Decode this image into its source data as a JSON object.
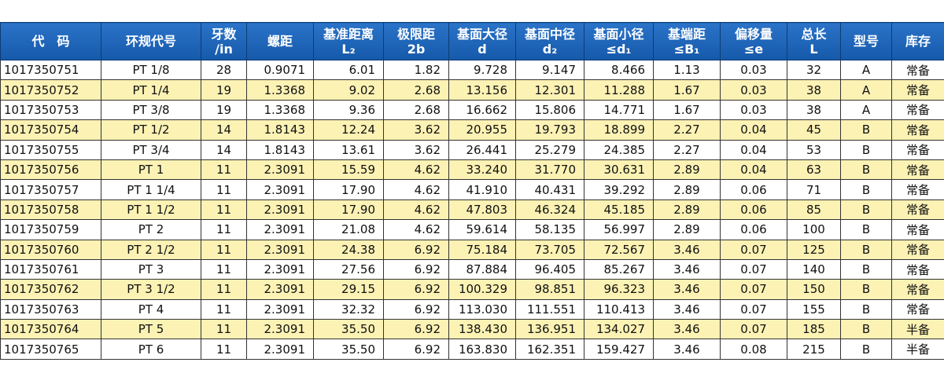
{
  "table": {
    "header": [
      [
        "代　码"
      ],
      [
        "环规代号"
      ],
      [
        "牙数",
        "/in"
      ],
      [
        "螺距"
      ],
      [
        "基准距离",
        "L₂"
      ],
      [
        "极限距",
        "2b"
      ],
      [
        "基面大径",
        "d"
      ],
      [
        "基面中径",
        "d₂"
      ],
      [
        "基面小径",
        "≤d₁"
      ],
      [
        "基端距",
        "≤B₁"
      ],
      [
        "偏移量",
        "≤e"
      ],
      [
        "总长",
        "L"
      ],
      [
        "型号"
      ],
      [
        "库存"
      ]
    ],
    "rows": [
      [
        "1017350751",
        "PT 1/8",
        "28",
        "0.9071",
        "6.01",
        "1.82",
        "9.728",
        "9.147",
        "8.466",
        "1.13",
        "0.03",
        "32",
        "A",
        "常备"
      ],
      [
        "1017350752",
        "PT 1/4",
        "19",
        "1.3368",
        "9.02",
        "2.68",
        "13.156",
        "12.301",
        "11.288",
        "1.67",
        "0.03",
        "38",
        "A",
        "常备"
      ],
      [
        "1017350753",
        "PT 3/8",
        "19",
        "1.3368",
        "9.36",
        "2.68",
        "16.662",
        "15.806",
        "14.771",
        "1.67",
        "0.03",
        "38",
        "A",
        "常备"
      ],
      [
        "1017350754",
        "PT 1/2",
        "14",
        "1.8143",
        "12.24",
        "3.62",
        "20.955",
        "19.793",
        "18.899",
        "2.27",
        "0.04",
        "45",
        "B",
        "常备"
      ],
      [
        "1017350755",
        "PT 3/4",
        "14",
        "1.8143",
        "13.61",
        "3.62",
        "26.441",
        "25.279",
        "24.385",
        "2.27",
        "0.04",
        "53",
        "B",
        "常备"
      ],
      [
        "1017350756",
        "PT 1",
        "11",
        "2.3091",
        "15.59",
        "4.62",
        "33.240",
        "31.770",
        "30.631",
        "2.89",
        "0.04",
        "63",
        "B",
        "常备"
      ],
      [
        "1017350757",
        "PT 1 1/4",
        "11",
        "2.3091",
        "17.90",
        "4.62",
        "41.910",
        "40.431",
        "39.292",
        "2.89",
        "0.06",
        "71",
        "B",
        "常备"
      ],
      [
        "1017350758",
        "PT 1 1/2",
        "11",
        "2.3091",
        "17.90",
        "4.62",
        "47.803",
        "46.324",
        "45.185",
        "2.89",
        "0.06",
        "85",
        "B",
        "常备"
      ],
      [
        "1017350759",
        "PT 2",
        "11",
        "2.3091",
        "21.08",
        "4.62",
        "59.614",
        "58.135",
        "56.997",
        "2.89",
        "0.06",
        "100",
        "B",
        "常备"
      ],
      [
        "1017350760",
        "PT 2 1/2",
        "11",
        "2.3091",
        "24.38",
        "6.92",
        "75.184",
        "73.705",
        "72.567",
        "3.46",
        "0.07",
        "125",
        "B",
        "常备"
      ],
      [
        "1017350761",
        "PT 3",
        "11",
        "2.3091",
        "27.56",
        "6.92",
        "87.884",
        "96.405",
        "85.267",
        "3.46",
        "0.07",
        "140",
        "B",
        "常备"
      ],
      [
        "1017350762",
        "PT 3 1/2",
        "11",
        "2.3091",
        "29.15",
        "6.92",
        "100.329",
        "98.851",
        "96.323",
        "3.46",
        "0.07",
        "150",
        "B",
        "常备"
      ],
      [
        "1017350763",
        "PT 4",
        "11",
        "2.3091",
        "32.32",
        "6.92",
        "113.030",
        "111.551",
        "110.413",
        "3.46",
        "0.07",
        "155",
        "B",
        "常备"
      ],
      [
        "1017350764",
        "PT 5",
        "11",
        "2.3091",
        "35.50",
        "6.92",
        "138.430",
        "136.951",
        "134.027",
        "3.46",
        "0.07",
        "185",
        "B",
        "半备"
      ],
      [
        "1017350765",
        "PT 6",
        "11",
        "2.3091",
        "35.50",
        "6.92",
        "163.830",
        "162.351",
        "159.427",
        "3.46",
        "0.08",
        "215",
        "B",
        "半备"
      ]
    ]
  }
}
